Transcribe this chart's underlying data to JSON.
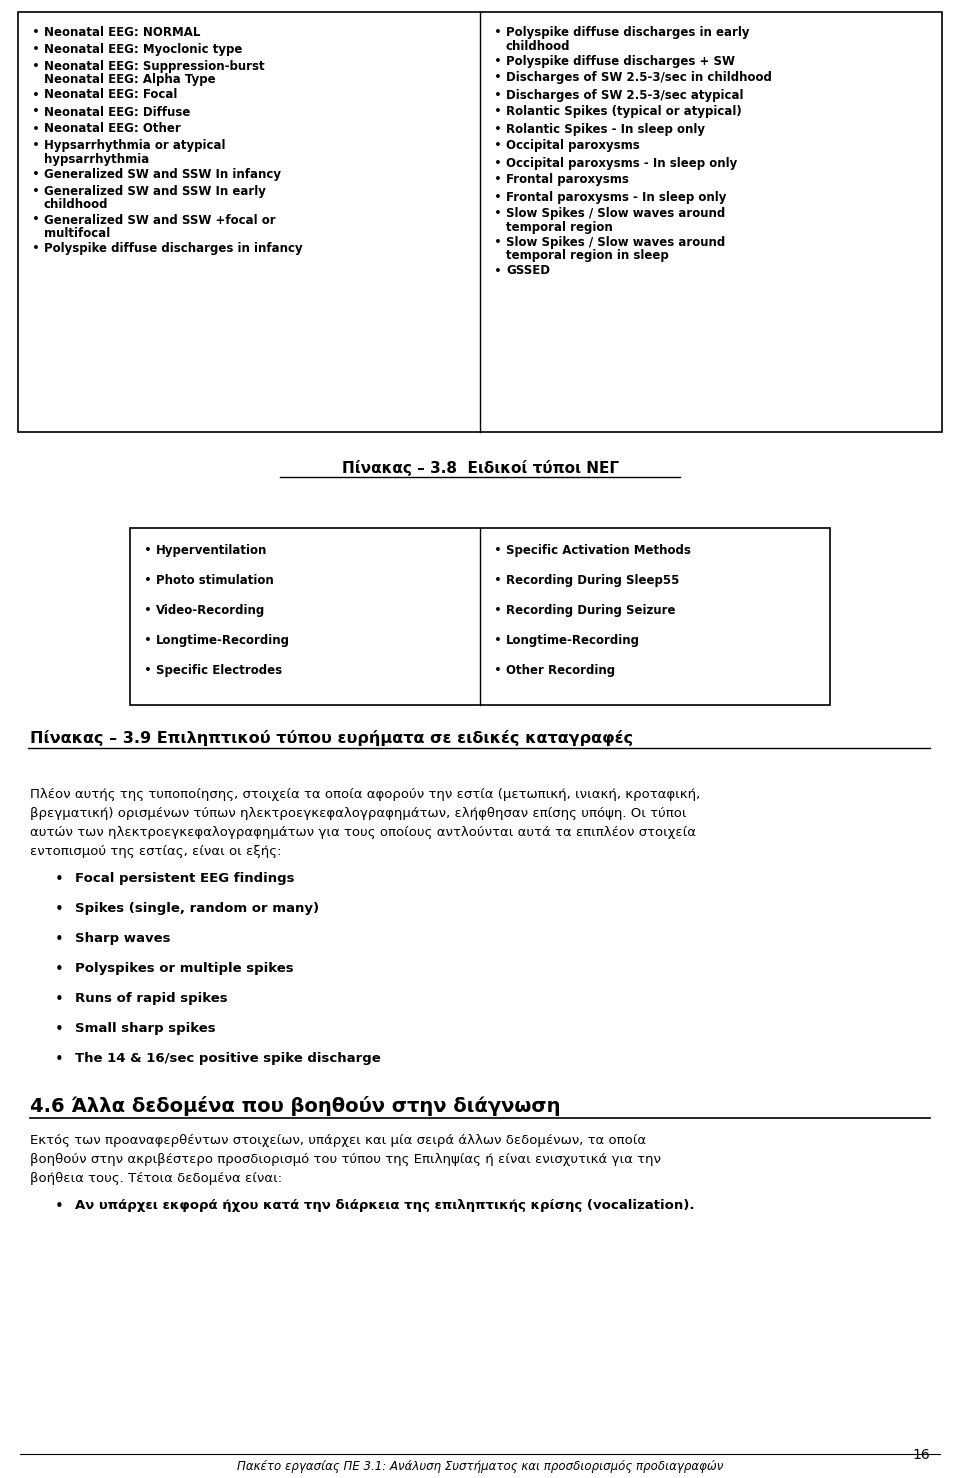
{
  "bg_color": "#ffffff",
  "text_color": "#000000",
  "page_number": "16",
  "footer_text": "Πακέτο εργασίας ΠΕ 3.1: Ανάλυση Συστήματος και προσδιορισμός προδιαγραφών",
  "table1_left_items": [
    "Neonatal EEG: NORMAL",
    "Neonatal EEG: Myoclonic type",
    "Neonatal EEG: Suppression-burst|Neonatal EEG: Alpha Type",
    "Neonatal EEG: Focal",
    "Neonatal EEG: Diffuse",
    "Neonatal EEG: Other",
    "Hypsarrhythmia or atypical|hypsarrhythmia",
    "Generalized SW and SSW In infancy",
    "Generalized SW and SSW In early|childhood",
    "Generalized SW and SSW +focal or|multifocal",
    "Polyspike diffuse discharges in infancy"
  ],
  "table1_right_items": [
    "Polyspike diffuse discharges in early|childhood",
    "Polyspike diffuse discharges + SW",
    "Discharges of SW 2.5-3/sec in childhood",
    "Discharges of SW 2.5-3/sec atypical",
    "Rolantic Spikes (typical or atypical)",
    "Rolantic Spikes - In sleep only",
    "Occipital paroxysms",
    "Occipital paroxysms - In sleep only",
    "Frontal paroxysms",
    "Frontal paroxysms - In sleep only",
    "Slow Spikes / Slow waves around|temporal region",
    "Slow Spikes / Slow waves around|temporal region in sleep",
    "GSSED"
  ],
  "table1_caption": "Πίνακας – 3.8  Ειδικοί τύποι ΝΕΓ",
  "table2_left_items": [
    "Hyperventilation",
    "Photo stimulation",
    "Video-Recording",
    "Longtime-Recording",
    "Specific Electrodes"
  ],
  "table2_right_items": [
    "Specific Activation Methods",
    "Recording During Sleep55",
    "Recording During Seizure",
    "Longtime-Recording",
    "Other Recording"
  ],
  "table2_caption": "Πίνακας – 3.9 Επιληπτικού τύπου ευρήματα σε ειδικές καταγραφές",
  "para1_lines": [
    "Πλέον αυτής της τυποποίησης, στοιχεία τα οποία αφορούν την εστία (μετωπική, ινιακή, κροταφική,",
    "βρεγματική) ορισμένων τύπων ηλεκτροεγκεφαλογραφημάτων, ελήφθησαν επίσης υπόψη. Οι τύποι",
    "αυτών των ηλεκτροεγκεφαλογραφημάτων για τους οποίους αντλούνται αυτά τα επιπλέον στοιχεία",
    "εντοπισμού της εστίας, είναι οι εξής:"
  ],
  "bullet_items": [
    "Focal persistent EEG findings",
    "Spikes (single, random or many)",
    "Sharp waves",
    "Polyspikes or multiple spikes",
    "Runs of rapid spikes",
    "Small sharp spikes",
    "The 14 & 16/sec positive spike discharge"
  ],
  "section_title": "4.6 Άλλα δεδομένα που βοηθούν στην διάγνωση",
  "para2_lines": [
    "Εκτός των προαναφερθέντων στοιχείων, υπάρχει και μία σειρά άλλων δεδομένων, τα οποία",
    "βοηθούν στην ακριβέστερο προσδιορισμό του τύπου της Επιληψίας ή είναι ενισχυτικά για την",
    "βοήθεια τους. Τέτοια δεδομένα είναι:"
  ],
  "bullet_item_last": "Αν υπάρχει εκφορά ήχου κατά την διάρκεια της επιληπτικής κρίσης (vocalization)."
}
